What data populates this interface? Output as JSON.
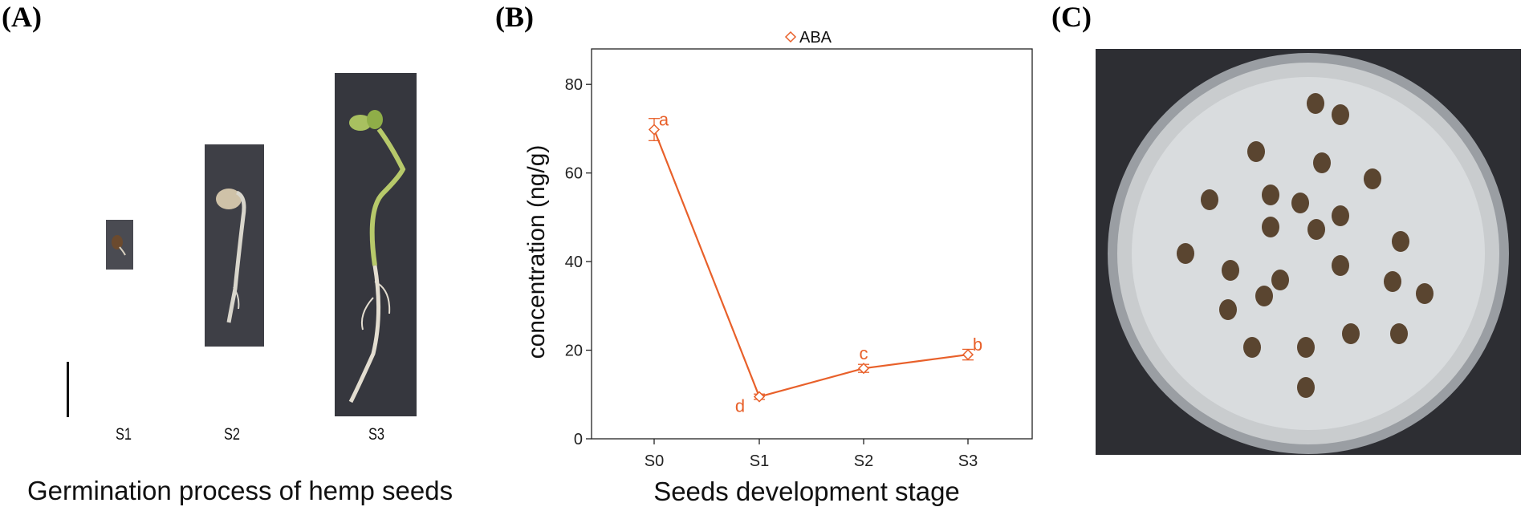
{
  "panel_a": {
    "label": "(A)",
    "caption": "Germination process of hemp seeds",
    "stages": [
      "S1",
      "S2",
      "S3"
    ]
  },
  "panel_b": {
    "label": "(B)"
  },
  "panel_c": {
    "label": "(C)"
  },
  "chart_data": {
    "type": "line",
    "title": "",
    "xlabel": "Seeds development stage",
    "ylabel": "concentration (ng/g)",
    "categories": [
      "S0",
      "S1",
      "S2",
      "S3"
    ],
    "ylim": [
      0,
      88
    ],
    "yticks": [
      0,
      20,
      40,
      60,
      80
    ],
    "grid": false,
    "legend_position": "top-center",
    "series": [
      {
        "name": "ABA",
        "color": "#e8602a",
        "values": [
          69.8,
          9.5,
          15.9,
          19.0
        ],
        "errors": [
          2.5,
          0.6,
          0.9,
          1.2
        ],
        "significance": [
          "a",
          "d",
          "c",
          "b"
        ]
      }
    ]
  }
}
